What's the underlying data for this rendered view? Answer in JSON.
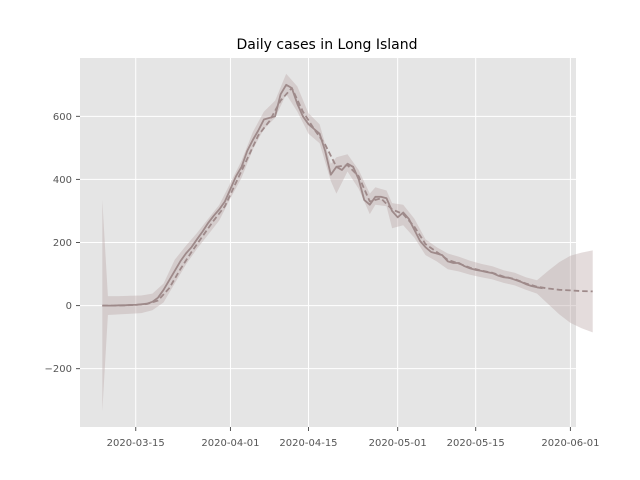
{
  "chart_data": {
    "type": "line",
    "title": "Daily cases in Long Island",
    "xlabel": "",
    "ylabel": "",
    "x_axis": {
      "type": "date",
      "range": [
        "2020-03-05",
        "2020-06-02"
      ],
      "tick_labels": [
        "2020-03-15",
        "2020-04-01",
        "2020-04-15",
        "2020-05-01",
        "2020-05-15",
        "2020-06-01"
      ]
    },
    "y_axis": {
      "range": [
        -385,
        785
      ],
      "tick_values": [
        -200,
        0,
        200,
        400,
        600
      ],
      "tick_labels": [
        "−200",
        "0",
        "200",
        "400",
        "600"
      ]
    },
    "grid": true,
    "legend": "none",
    "colors": {
      "background": "#e5e5e5",
      "grid": "#ffffff",
      "line": "#9e8a8a",
      "band": "#bca8a8",
      "band_opacity": 0.4
    },
    "series": [
      {
        "style": "solid",
        "role": "observed",
        "points": [
          [
            "2020-03-09",
            0
          ],
          [
            "2020-03-10",
            0
          ],
          [
            "2020-03-11",
            0
          ],
          [
            "2020-03-12",
            1
          ],
          [
            "2020-03-13",
            1
          ],
          [
            "2020-03-14",
            2
          ],
          [
            "2020-03-15",
            2
          ],
          [
            "2020-03-16",
            4
          ],
          [
            "2020-03-17",
            6
          ],
          [
            "2020-03-18",
            12
          ],
          [
            "2020-03-19",
            25
          ],
          [
            "2020-03-20",
            50
          ],
          [
            "2020-03-21",
            80
          ],
          [
            "2020-03-22",
            110
          ],
          [
            "2020-03-23",
            140
          ],
          [
            "2020-03-24",
            165
          ],
          [
            "2020-03-25",
            185
          ],
          [
            "2020-03-26",
            210
          ],
          [
            "2020-03-27",
            235
          ],
          [
            "2020-03-28",
            262
          ],
          [
            "2020-03-29",
            285
          ],
          [
            "2020-03-30",
            305
          ],
          [
            "2020-03-31",
            330
          ],
          [
            "2020-04-01",
            370
          ],
          [
            "2020-04-02",
            410
          ],
          [
            "2020-04-03",
            440
          ],
          [
            "2020-04-04",
            490
          ],
          [
            "2020-04-05",
            525
          ],
          [
            "2020-04-06",
            555
          ],
          [
            "2020-04-07",
            590
          ],
          [
            "2020-04-08",
            595
          ],
          [
            "2020-04-09",
            600
          ],
          [
            "2020-04-10",
            670
          ],
          [
            "2020-04-11",
            700
          ],
          [
            "2020-04-12",
            690
          ],
          [
            "2020-04-13",
            640
          ],
          [
            "2020-04-14",
            600
          ],
          [
            "2020-04-15",
            575
          ],
          [
            "2020-04-16",
            560
          ],
          [
            "2020-04-17",
            545
          ],
          [
            "2020-04-18",
            490
          ],
          [
            "2020-04-19",
            415
          ],
          [
            "2020-04-20",
            440
          ],
          [
            "2020-04-21",
            430
          ],
          [
            "2020-04-22",
            450
          ],
          [
            "2020-04-23",
            440
          ],
          [
            "2020-04-24",
            400
          ],
          [
            "2020-04-25",
            335
          ],
          [
            "2020-04-26",
            320
          ],
          [
            "2020-04-27",
            345
          ],
          [
            "2020-04-28",
            345
          ],
          [
            "2020-04-29",
            340
          ],
          [
            "2020-04-30",
            300
          ],
          [
            "2020-05-01",
            280
          ],
          [
            "2020-05-02",
            295
          ],
          [
            "2020-05-03",
            275
          ],
          [
            "2020-05-04",
            240
          ],
          [
            "2020-05-05",
            205
          ],
          [
            "2020-05-06",
            185
          ],
          [
            "2020-05-07",
            170
          ],
          [
            "2020-05-08",
            165
          ],
          [
            "2020-05-09",
            160
          ],
          [
            "2020-05-10",
            140
          ],
          [
            "2020-05-11",
            135
          ],
          [
            "2020-05-12",
            135
          ],
          [
            "2020-05-13",
            125
          ],
          [
            "2020-05-14",
            118
          ],
          [
            "2020-05-15",
            113
          ],
          [
            "2020-05-16",
            110
          ],
          [
            "2020-05-17",
            106
          ],
          [
            "2020-05-18",
            103
          ],
          [
            "2020-05-19",
            95
          ],
          [
            "2020-05-20",
            90
          ],
          [
            "2020-05-21",
            88
          ],
          [
            "2020-05-22",
            82
          ],
          [
            "2020-05-23",
            76
          ],
          [
            "2020-05-24",
            68
          ],
          [
            "2020-05-25",
            62
          ],
          [
            "2020-05-26",
            58
          ],
          [
            "2020-05-27",
            55
          ]
        ]
      },
      {
        "style": "dashed",
        "role": "fitted",
        "points": [
          [
            "2020-03-09",
            0
          ],
          [
            "2020-03-11",
            0
          ],
          [
            "2020-03-13",
            1
          ],
          [
            "2020-03-15",
            2
          ],
          [
            "2020-03-17",
            5
          ],
          [
            "2020-03-19",
            16
          ],
          [
            "2020-03-21",
            55
          ],
          [
            "2020-03-23",
            115
          ],
          [
            "2020-03-25",
            170
          ],
          [
            "2020-03-27",
            220
          ],
          [
            "2020-03-29",
            270
          ],
          [
            "2020-03-31",
            315
          ],
          [
            "2020-04-02",
            390
          ],
          [
            "2020-04-04",
            465
          ],
          [
            "2020-04-06",
            540
          ],
          [
            "2020-04-08",
            585
          ],
          [
            "2020-04-10",
            650
          ],
          [
            "2020-04-12",
            690
          ],
          [
            "2020-04-14",
            615
          ],
          [
            "2020-04-16",
            560
          ],
          [
            "2020-04-18",
            510
          ],
          [
            "2020-04-20",
            440
          ],
          [
            "2020-04-22",
            445
          ],
          [
            "2020-04-24",
            410
          ],
          [
            "2020-04-26",
            330
          ],
          [
            "2020-04-28",
            340
          ],
          [
            "2020-04-30",
            305
          ],
          [
            "2020-05-02",
            290
          ],
          [
            "2020-05-04",
            250
          ],
          [
            "2020-05-06",
            195
          ],
          [
            "2020-05-08",
            170
          ],
          [
            "2020-05-10",
            145
          ],
          [
            "2020-05-12",
            133
          ],
          [
            "2020-05-14",
            120
          ],
          [
            "2020-05-16",
            111
          ],
          [
            "2020-05-18",
            104
          ],
          [
            "2020-05-20",
            92
          ],
          [
            "2020-05-22",
            84
          ],
          [
            "2020-05-24",
            70
          ],
          [
            "2020-05-26",
            60
          ],
          [
            "2020-05-28",
            54
          ],
          [
            "2020-05-30",
            50
          ],
          [
            "2020-06-01",
            48
          ],
          [
            "2020-06-03",
            46
          ],
          [
            "2020-06-05",
            45
          ]
        ]
      }
    ],
    "confidence_band": [
      [
        "2020-03-09",
        -335,
        335
      ],
      [
        "2020-03-10",
        -30,
        30
      ],
      [
        "2020-03-12",
        -28,
        30
      ],
      [
        "2020-03-14",
        -26,
        31
      ],
      [
        "2020-03-16",
        -24,
        32
      ],
      [
        "2020-03-18",
        -15,
        38
      ],
      [
        "2020-03-20",
        10,
        70
      ],
      [
        "2020-03-22",
        70,
        145
      ],
      [
        "2020-03-24",
        130,
        190
      ],
      [
        "2020-03-26",
        180,
        230
      ],
      [
        "2020-03-28",
        225,
        275
      ],
      [
        "2020-03-30",
        270,
        320
      ],
      [
        "2020-04-01",
        340,
        390
      ],
      [
        "2020-04-03",
        405,
        460
      ],
      [
        "2020-04-05",
        495,
        550
      ],
      [
        "2020-04-07",
        560,
        615
      ],
      [
        "2020-04-09",
        595,
        650
      ],
      [
        "2020-04-11",
        670,
        735
      ],
      [
        "2020-04-13",
        615,
        695
      ],
      [
        "2020-04-15",
        545,
        610
      ],
      [
        "2020-04-17",
        515,
        575
      ],
      [
        "2020-04-19",
        395,
        450
      ],
      [
        "2020-04-20",
        355,
        470
      ],
      [
        "2020-04-22",
        425,
        480
      ],
      [
        "2020-04-24",
        370,
        430
      ],
      [
        "2020-04-26",
        290,
        355
      ],
      [
        "2020-04-27",
        320,
        375
      ],
      [
        "2020-04-29",
        315,
        365
      ],
      [
        "2020-04-30",
        245,
        325
      ],
      [
        "2020-05-02",
        255,
        320
      ],
      [
        "2020-05-04",
        215,
        275
      ],
      [
        "2020-05-06",
        160,
        210
      ],
      [
        "2020-05-08",
        140,
        185
      ],
      [
        "2020-05-10",
        115,
        165
      ],
      [
        "2020-05-12",
        108,
        155
      ],
      [
        "2020-05-14",
        98,
        142
      ],
      [
        "2020-05-16",
        90,
        132
      ],
      [
        "2020-05-18",
        83,
        125
      ],
      [
        "2020-05-20",
        72,
        112
      ],
      [
        "2020-05-22",
        64,
        104
      ],
      [
        "2020-05-24",
        50,
        90
      ],
      [
        "2020-05-26",
        38,
        80
      ],
      [
        "2020-05-28",
        5,
        110
      ],
      [
        "2020-05-30",
        -28,
        138
      ],
      [
        "2020-06-01",
        -55,
        158
      ],
      [
        "2020-06-03",
        -72,
        168
      ],
      [
        "2020-06-05",
        -85,
        175
      ]
    ]
  }
}
